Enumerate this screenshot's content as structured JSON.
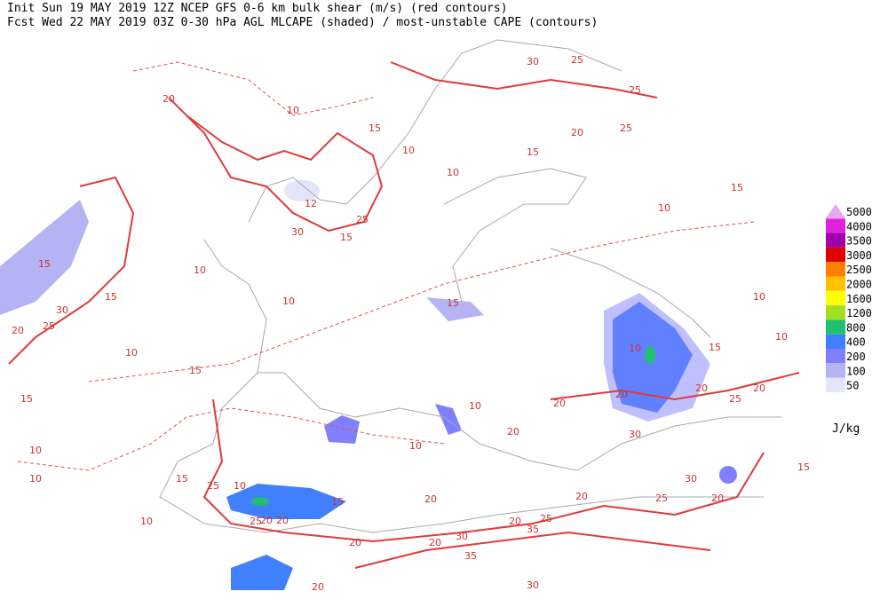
{
  "header": {
    "line1": "Init  Sun 19 MAY 2019 12Z  NCEP GFS 0-6 km bulk shear (m/s) (red contours)",
    "line2": "Fcst Wed 22 MAY 2019 03Z  0-30 hPa AGL MLCAPE (shaded) / most-unstable CAPE (contours)"
  },
  "legend": {
    "unit": "J/kg",
    "levels": [
      {
        "label": "5000",
        "color": "#e8a8f0"
      },
      {
        "label": "4000",
        "color": "#e020e0"
      },
      {
        "label": "3500",
        "color": "#a000a8"
      },
      {
        "label": "3000",
        "color": "#e00000"
      },
      {
        "label": "2500",
        "color": "#ff8000"
      },
      {
        "label": "2000",
        "color": "#ffc000"
      },
      {
        "label": "1600",
        "color": "#ffff00"
      },
      {
        "label": "1200",
        "color": "#a0e020"
      },
      {
        "label": "800",
        "color": "#20c070"
      },
      {
        "label": "400",
        "color": "#4080ff"
      },
      {
        "label": "200",
        "color": "#8080ff"
      },
      {
        "label": "100",
        "color": "#b4b4f4"
      },
      {
        "label": "50",
        "color": "#e4e4fa"
      }
    ]
  },
  "contour_labels": [
    30,
    25,
    25,
    10,
    20,
    15,
    10,
    20,
    25,
    15,
    10,
    15,
    10,
    12,
    25,
    30,
    15,
    10,
    15,
    15,
    30,
    25,
    20,
    10,
    15,
    10,
    10,
    10,
    15,
    20,
    20,
    20,
    25,
    20,
    10,
    15,
    15,
    10,
    20,
    30,
    10,
    10,
    15,
    25,
    10,
    15,
    20,
    20,
    25,
    20,
    15,
    30,
    10,
    20,
    20,
    30,
    20,
    35,
    20,
    20,
    35,
    30,
    20,
    25,
    10,
    25
  ]
}
